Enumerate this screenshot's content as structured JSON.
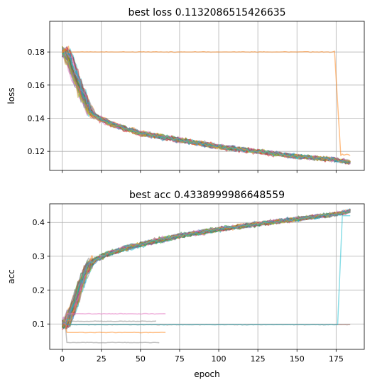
{
  "chart_data": [
    {
      "type": "line",
      "title": "best loss 0.1132086515426635",
      "xlabel": "",
      "ylabel": "loss",
      "xlim": [
        -8,
        193
      ],
      "ylim": [
        0.1085,
        0.1985
      ],
      "xticks": [
        0,
        25,
        50,
        75,
        100,
        125,
        150,
        175
      ],
      "xtick_labels": [
        "",
        "",
        "",
        "",
        "",
        "",
        "",
        ""
      ],
      "yticks": [
        0.12,
        0.14,
        0.16,
        0.18
      ],
      "ytick_labels": [
        "0.12",
        "0.14",
        "0.16",
        "0.18"
      ],
      "grid": true,
      "legend": "none",
      "series_count": 40,
      "epochs": 185,
      "typical_curve": [
        {
          "x": 0,
          "y": 0.18
        },
        {
          "x": 5,
          "y": 0.168
        },
        {
          "x": 10,
          "y": 0.156
        },
        {
          "x": 15,
          "y": 0.146
        },
        {
          "x": 20,
          "y": 0.141
        },
        {
          "x": 30,
          "y": 0.137
        },
        {
          "x": 50,
          "y": 0.131
        },
        {
          "x": 75,
          "y": 0.127
        },
        {
          "x": 100,
          "y": 0.123
        },
        {
          "x": 125,
          "y": 0.12
        },
        {
          "x": 150,
          "y": 0.117
        },
        {
          "x": 175,
          "y": 0.115
        },
        {
          "x": 184,
          "y": 0.1132
        }
      ],
      "plateau_series": [
        {
          "color": "#ff7f0e",
          "plateau": 0.18,
          "drop_epoch": 174,
          "final": 0.118
        }
      ]
    },
    {
      "type": "line",
      "title": "best acc 0.4338999986648559",
      "xlabel": "epoch",
      "ylabel": "acc",
      "xlim": [
        -8,
        193
      ],
      "ylim": [
        0.025,
        0.455
      ],
      "xticks": [
        0,
        25,
        50,
        75,
        100,
        125,
        150,
        175
      ],
      "xtick_labels": [
        "0",
        "25",
        "50",
        "75",
        "100",
        "125",
        "150",
        "175"
      ],
      "yticks": [
        0.1,
        0.2,
        0.3,
        0.4
      ],
      "ytick_labels": [
        "0.1",
        "0.2",
        "0.3",
        "0.4"
      ],
      "grid": true,
      "legend": "none",
      "series_count": 40,
      "epochs": 185,
      "typical_curve": [
        {
          "x": 0,
          "y": 0.1
        },
        {
          "x": 5,
          "y": 0.15
        },
        {
          "x": 10,
          "y": 0.22
        },
        {
          "x": 15,
          "y": 0.27
        },
        {
          "x": 20,
          "y": 0.29
        },
        {
          "x": 30,
          "y": 0.31
        },
        {
          "x": 50,
          "y": 0.335
        },
        {
          "x": 75,
          "y": 0.36
        },
        {
          "x": 100,
          "y": 0.38
        },
        {
          "x": 125,
          "y": 0.395
        },
        {
          "x": 150,
          "y": 0.41
        },
        {
          "x": 175,
          "y": 0.425
        },
        {
          "x": 184,
          "y": 0.4339
        }
      ],
      "stuck_series": [
        {
          "color": "#8c564b",
          "level": 0.098,
          "end_epoch": 184
        },
        {
          "color": "#17becf",
          "level": 0.098,
          "jump_epoch": 176,
          "final": 0.42
        },
        {
          "color": "#e377c2",
          "level": 0.13,
          "end_epoch": 66
        },
        {
          "color": "#7f7f7f",
          "level": 0.108,
          "end_epoch": 60
        },
        {
          "color": "#7f7f7f",
          "level": 0.045,
          "end_epoch": 62
        },
        {
          "color": "#ff7f0e",
          "level": 0.075,
          "end_epoch": 66
        }
      ]
    }
  ],
  "palette": [
    "#1f77b4",
    "#ff7f0e",
    "#2ca02c",
    "#d62728",
    "#9467bd",
    "#8c564b",
    "#e377c2",
    "#7f7f7f",
    "#bcbd22",
    "#17becf"
  ]
}
